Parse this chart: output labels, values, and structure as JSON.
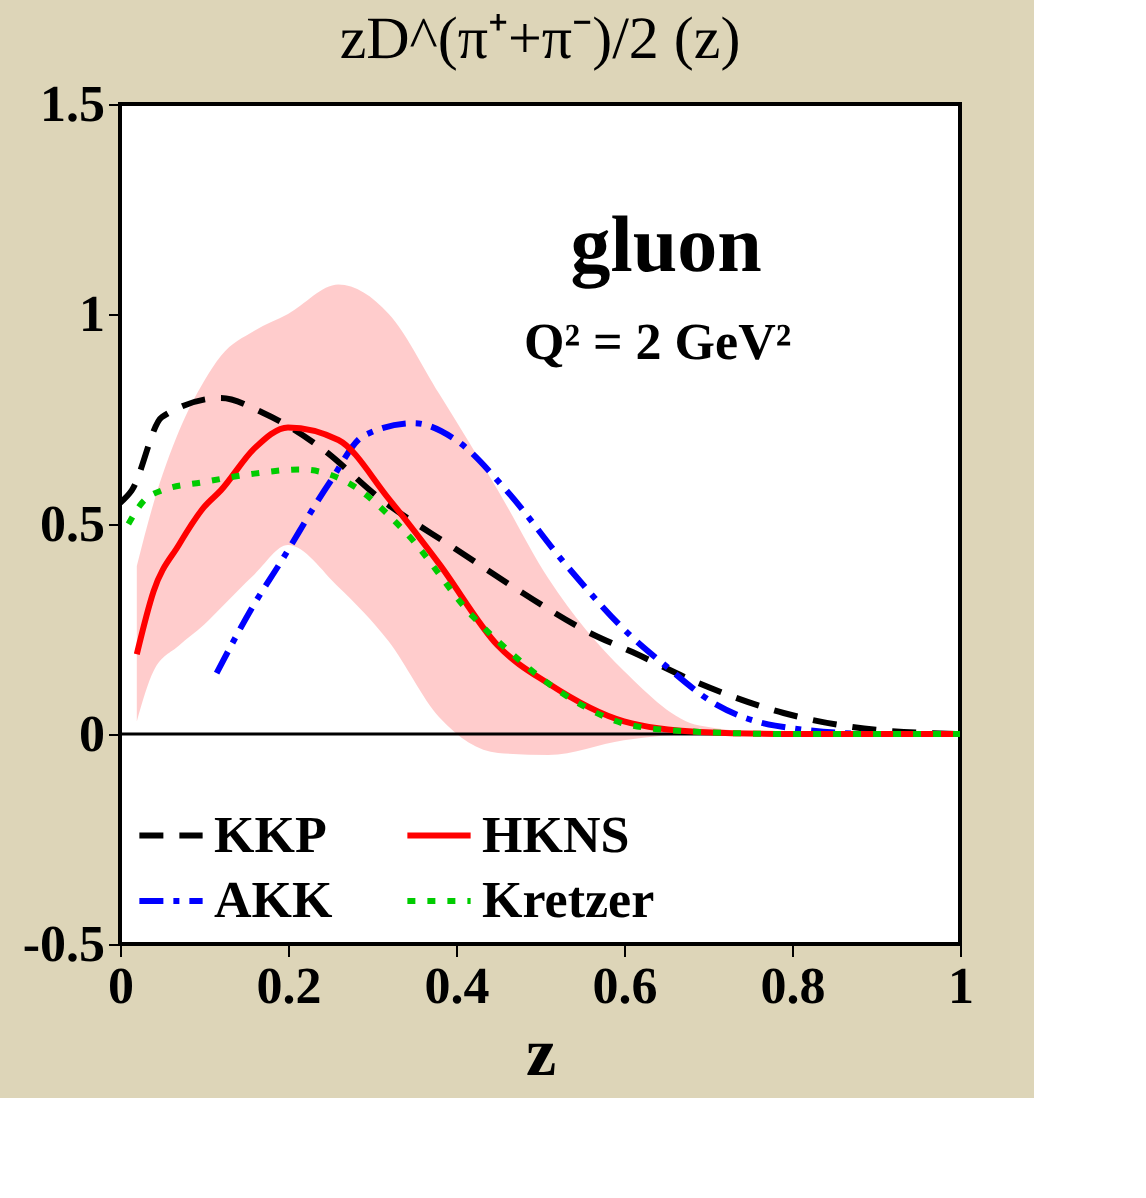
{
  "chart_data": {
    "type": "line",
    "title": "zD^(π⁺+π⁻)/2 (z)",
    "xlabel": "z",
    "annotations": [
      "gluon",
      "Q² = 2 GeV²"
    ],
    "xlim": [
      0,
      1
    ],
    "ylim": [
      -0.5,
      1.5
    ],
    "xticks": [
      0,
      0.2,
      0.4,
      0.6,
      0.8,
      1
    ],
    "yticks": [
      -0.5,
      0,
      0.5,
      1,
      1.5
    ],
    "grid": false,
    "legend": "bottom",
    "marker": "none",
    "ref_lines": [
      {
        "axis": "y",
        "value": 0,
        "color": "#000000",
        "line_style": "solid"
      }
    ],
    "series": [
      {
        "name": "KKP",
        "color": "#000000",
        "line_style": "dashed",
        "x": [
          0.0,
          0.014,
          0.05,
          0.12,
          0.17,
          0.24,
          0.31,
          0.4,
          0.48,
          0.56,
          0.61,
          0.69,
          0.79,
          0.9,
          1.0
        ],
        "values": [
          0.55,
          0.58,
          0.755,
          0.8,
          0.765,
          0.68,
          0.56,
          0.44,
          0.335,
          0.24,
          0.195,
          0.12,
          0.05,
          0.01,
          0
        ]
      },
      {
        "name": "AKK",
        "color": "#0000ff",
        "line_style": "dashdot",
        "x": [
          0.115,
          0.16,
          0.19,
          0.25,
          0.29,
          0.35,
          0.4,
          0.46,
          0.53,
          0.61,
          0.645,
          0.71,
          0.78,
          0.9,
          1.0
        ],
        "values": [
          0.145,
          0.31,
          0.405,
          0.6,
          0.71,
          0.74,
          0.7,
          0.58,
          0.405,
          0.23,
          0.17,
          0.07,
          0.02,
          0,
          0
        ]
      },
      {
        "name": "HKNS",
        "color": "#ff0000",
        "line_style": "solid",
        "x": [
          0.02,
          0.04,
          0.07,
          0.1,
          0.12,
          0.16,
          0.2,
          0.26,
          0.32,
          0.38,
          0.45,
          0.51,
          0.6,
          0.69,
          0.8,
          0.9,
          1.0
        ],
        "values": [
          0.19,
          0.34,
          0.45,
          0.54,
          0.58,
          0.68,
          0.73,
          0.7,
          0.56,
          0.405,
          0.21,
          0.12,
          0.03,
          0.005,
          0,
          0,
          0
        ],
        "upper": [
          0.4,
          0.55,
          0.72,
          0.84,
          0.9,
          0.96,
          1.0,
          1.07,
          1.0,
          0.81,
          0.58,
          0.37,
          0.15,
          0.02,
          0,
          0,
          0
        ],
        "lower": [
          0.03,
          0.15,
          0.21,
          0.26,
          0.3,
          0.38,
          0.45,
          0.35,
          0.22,
          0.04,
          -0.045,
          -0.05,
          -0.015,
          0,
          0,
          0,
          0
        ]
      },
      {
        "name": "Kretzer",
        "color": "#00cc00",
        "line_style": "dotted",
        "x": [
          0.01,
          0.026,
          0.05,
          0.1,
          0.16,
          0.215,
          0.27,
          0.34,
          0.42,
          0.47,
          0.54,
          0.61,
          0.69,
          0.8,
          1.0
        ],
        "values": [
          0.5,
          0.55,
          0.58,
          0.6,
          0.62,
          0.63,
          0.6,
          0.48,
          0.28,
          0.185,
          0.08,
          0.02,
          0.005,
          0,
          0
        ]
      }
    ]
  }
}
